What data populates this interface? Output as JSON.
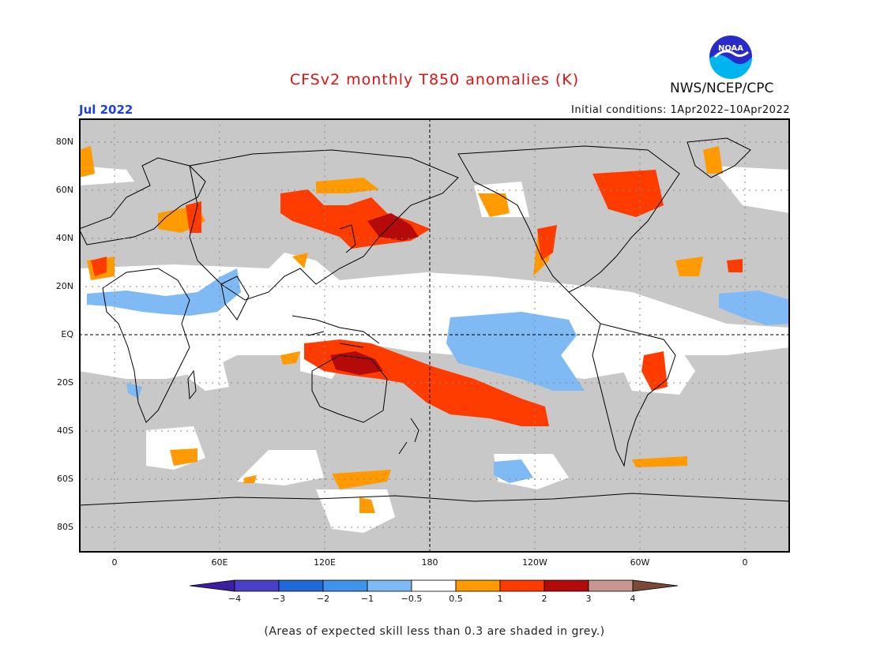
{
  "header": {
    "title": "CFSv2 monthly T850 anomalies (K)",
    "month": "Jul 2022",
    "initial_conditions": "Initial conditions: 1Apr2022–10Apr2022",
    "org": "NWS/NCEP/CPC",
    "logo_text": "NOAA"
  },
  "map": {
    "lat_labels": [
      "80N",
      "60N",
      "40N",
      "20N",
      "EQ",
      "20S",
      "40S",
      "60S",
      "80S"
    ],
    "lon_labels": [
      "0",
      "60E",
      "120E",
      "180",
      "120W",
      "60W",
      "0"
    ],
    "masked_color": "#c8c8c8",
    "land_outline_color": "#000000"
  },
  "colorbar": {
    "labels": [
      "−4",
      "−3",
      "−2",
      "−1",
      "−0.5",
      "0.5",
      "1",
      "2",
      "3",
      "4"
    ],
    "colors": [
      "#3c1ea0",
      "#4a3fc8",
      "#1f6ad8",
      "#3f93ea",
      "#7fbaf5",
      "#ffffff",
      "#ff9a00",
      "#ff3c00",
      "#b40a0a",
      "#c89890",
      "#7a4a38"
    ]
  },
  "footer": {
    "note": "(Areas of expected skill less than 0.3 are shaded in grey.)"
  }
}
